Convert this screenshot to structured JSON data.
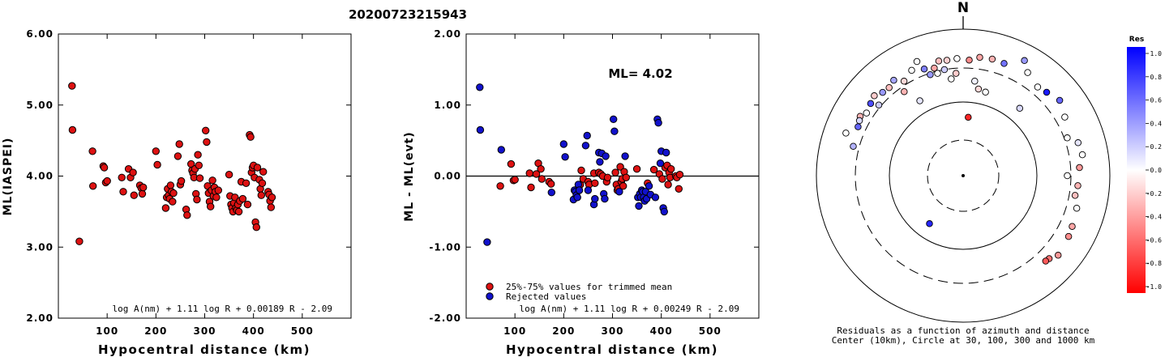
{
  "title": "20200723215943",
  "chart_data": [
    {
      "type": "scatter",
      "xlabel": "Hypocentral distance (km)",
      "ylabel": "ML(IASPEI)",
      "xlim": [
        0,
        600
      ],
      "ylim": [
        2.0,
        6.0
      ],
      "xticks": [
        "100",
        "200",
        "300",
        "400",
        "500"
      ],
      "yticks": [
        "2.00",
        "3.00",
        "4.00",
        "5.00",
        "6.00"
      ],
      "formula": "log A(nm) + 1.11 log R + 0.00189 R - 2.09",
      "points_color": "#dd1111",
      "points": [
        [
          28,
          5.27
        ],
        [
          29,
          4.65
        ],
        [
          43,
          3.08
        ],
        [
          70,
          4.35
        ],
        [
          71,
          3.86
        ],
        [
          92,
          4.14
        ],
        [
          94,
          4.12
        ],
        [
          97,
          3.91
        ],
        [
          100,
          3.93
        ],
        [
          130,
          3.98
        ],
        [
          133,
          3.78
        ],
        [
          144,
          4.1
        ],
        [
          148,
          3.98
        ],
        [
          153,
          4.05
        ],
        [
          155,
          3.73
        ],
        [
          167,
          3.87
        ],
        [
          170,
          3.83
        ],
        [
          172,
          3.75
        ],
        [
          174,
          3.84
        ],
        [
          200,
          4.35
        ],
        [
          203,
          4.16
        ],
        [
          220,
          3.55
        ],
        [
          222,
          3.7
        ],
        [
          224,
          3.82
        ],
        [
          226,
          3.73
        ],
        [
          228,
          3.68
        ],
        [
          230,
          3.87
        ],
        [
          232,
          3.78
        ],
        [
          234,
          3.64
        ],
        [
          236,
          3.76
        ],
        [
          245,
          4.28
        ],
        [
          248,
          4.45
        ],
        [
          250,
          3.88
        ],
        [
          252,
          3.93
        ],
        [
          262,
          3.53
        ],
        [
          264,
          3.45
        ],
        [
          272,
          4.17
        ],
        [
          274,
          4.08
        ],
        [
          276,
          4.04
        ],
        [
          278,
          3.98
        ],
        [
          280,
          4.1
        ],
        [
          282,
          3.75
        ],
        [
          284,
          3.67
        ],
        [
          286,
          4.3
        ],
        [
          288,
          4.15
        ],
        [
          290,
          3.97
        ],
        [
          302,
          4.64
        ],
        [
          304,
          4.48
        ],
        [
          306,
          3.86
        ],
        [
          308,
          3.76
        ],
        [
          310,
          3.64
        ],
        [
          312,
          3.57
        ],
        [
          314,
          3.8
        ],
        [
          316,
          3.94
        ],
        [
          318,
          3.72
        ],
        [
          320,
          3.84
        ],
        [
          322,
          3.78
        ],
        [
          324,
          3.7
        ],
        [
          328,
          3.8
        ],
        [
          350,
          4.02
        ],
        [
          352,
          3.72
        ],
        [
          354,
          3.6
        ],
        [
          356,
          3.55
        ],
        [
          358,
          3.5
        ],
        [
          360,
          3.62
        ],
        [
          362,
          3.7
        ],
        [
          364,
          3.55
        ],
        [
          366,
          3.52
        ],
        [
          368,
          3.6
        ],
        [
          370,
          3.5
        ],
        [
          372,
          3.65
        ],
        [
          375,
          3.92
        ],
        [
          378,
          3.68
        ],
        [
          385,
          3.9
        ],
        [
          388,
          3.6
        ],
        [
          392,
          4.58
        ],
        [
          394,
          4.55
        ],
        [
          396,
          4.05
        ],
        [
          398,
          4.12
        ],
        [
          400,
          4.15
        ],
        [
          402,
          3.98
        ],
        [
          404,
          3.35
        ],
        [
          406,
          3.28
        ],
        [
          408,
          4.12
        ],
        [
          412,
          3.95
        ],
        [
          414,
          3.82
        ],
        [
          416,
          3.73
        ],
        [
          418,
          3.9
        ],
        [
          420,
          4.06
        ],
        [
          430,
          3.78
        ],
        [
          432,
          3.74
        ],
        [
          434,
          3.65
        ],
        [
          436,
          3.56
        ],
        [
          438,
          3.7
        ]
      ]
    },
    {
      "type": "scatter",
      "xlabel": "Hypocentral distance (km)",
      "ylabel": "ML - ML(evt)",
      "xlim": [
        0,
        600
      ],
      "ylim": [
        -2.0,
        2.0
      ],
      "xticks": [
        "100",
        "200",
        "300",
        "400",
        "500"
      ],
      "yticks": [
        "-2.00",
        "-1.00",
        "0.00",
        "1.00",
        "2.00"
      ],
      "annotation": "ML= 4.02",
      "formula": "log A(nm) + 1.11 log R + 0.00249 R - 2.09",
      "zero_line": 0,
      "legend": [
        {
          "label": "25%-75% values for trimmed mean",
          "color": "#dd1111"
        },
        {
          "label": "Rejected values",
          "color": "#1111cc"
        }
      ],
      "series": [
        {
          "name": "25%-75% values for trimmed mean",
          "color": "#dd1111",
          "points": [
            [
              70,
              -0.14
            ],
            [
              92,
              0.17
            ],
            [
              97,
              -0.06
            ],
            [
              100,
              -0.05
            ],
            [
              130,
              0.04
            ],
            [
              133,
              -0.16
            ],
            [
              144,
              0.03
            ],
            [
              148,
              0.18
            ],
            [
              153,
              0.1
            ],
            [
              155,
              -0.04
            ],
            [
              170,
              -0.08
            ],
            [
              174,
              -0.11
            ],
            [
              234,
              -0.12
            ],
            [
              236,
              0.08
            ],
            [
              240,
              -0.04
            ],
            [
              250,
              -0.08
            ],
            [
              252,
              -0.12
            ],
            [
              262,
              0.04
            ],
            [
              264,
              -0.1
            ],
            [
              272,
              0.05
            ],
            [
              276,
              0.03
            ],
            [
              280,
              0.0
            ],
            [
              288,
              -0.08
            ],
            [
              290,
              -0.02
            ],
            [
              306,
              0.05
            ],
            [
              308,
              -0.12
            ],
            [
              310,
              -0.2
            ],
            [
              312,
              -0.18
            ],
            [
              316,
              0.13
            ],
            [
              318,
              -0.08
            ],
            [
              320,
              -0.04
            ],
            [
              322,
              -0.14
            ],
            [
              324,
              0.06
            ],
            [
              328,
              -0.02
            ],
            [
              350,
              0.1
            ],
            [
              372,
              -0.1
            ],
            [
              385,
              0.09
            ],
            [
              396,
              0.03
            ],
            [
              402,
              -0.04
            ],
            [
              408,
              0.12
            ],
            [
              412,
              0.15
            ],
            [
              414,
              -0.12
            ],
            [
              416,
              0.05
            ],
            [
              418,
              -0.02
            ],
            [
              420,
              0.1
            ],
            [
              430,
              0.0
            ],
            [
              432,
              -0.02
            ],
            [
              436,
              -0.18
            ],
            [
              438,
              0.02
            ]
          ]
        },
        {
          "name": "Rejected values",
          "color": "#1111cc",
          "points": [
            [
              28,
              1.25
            ],
            [
              29,
              0.65
            ],
            [
              43,
              -0.93
            ],
            [
              72,
              0.37
            ],
            [
              175,
              -0.23
            ],
            [
              200,
              0.45
            ],
            [
              203,
              0.27
            ],
            [
              220,
              -0.33
            ],
            [
              222,
              -0.2
            ],
            [
              224,
              -0.22
            ],
            [
              226,
              -0.27
            ],
            [
              228,
              -0.3
            ],
            [
              230,
              -0.12
            ],
            [
              232,
              -0.2
            ],
            [
              245,
              0.43
            ],
            [
              248,
              0.57
            ],
            [
              250,
              -0.2
            ],
            [
              262,
              -0.4
            ],
            [
              264,
              -0.32
            ],
            [
              272,
              0.33
            ],
            [
              274,
              0.2
            ],
            [
              278,
              0.32
            ],
            [
              282,
              -0.25
            ],
            [
              284,
              -0.32
            ],
            [
              286,
              0.28
            ],
            [
              302,
              0.8
            ],
            [
              304,
              0.63
            ],
            [
              314,
              -0.22
            ],
            [
              326,
              0.28
            ],
            [
              352,
              -0.3
            ],
            [
              354,
              -0.42
            ],
            [
              356,
              -0.25
            ],
            [
              358,
              -0.3
            ],
            [
              360,
              -0.2
            ],
            [
              362,
              -0.22
            ],
            [
              364,
              -0.3
            ],
            [
              366,
              -0.35
            ],
            [
              368,
              -0.22
            ],
            [
              370,
              -0.32
            ],
            [
              375,
              -0.14
            ],
            [
              378,
              -0.26
            ],
            [
              388,
              -0.3
            ],
            [
              392,
              0.8
            ],
            [
              394,
              0.75
            ],
            [
              398,
              0.18
            ],
            [
              400,
              0.35
            ],
            [
              404,
              -0.45
            ],
            [
              406,
              -0.5
            ],
            [
              410,
              0.33
            ]
          ]
        }
      ]
    },
    {
      "type": "polar",
      "north_label": "N",
      "caption_line1": "Residuals as a function of azimuth and distance",
      "caption_line2": "Center (10km), Circle at 30, 100, 300 and 1000 km",
      "colorbar": {
        "title": "Res",
        "ticks": [
          "1.0",
          "0.8",
          "0.6",
          "0.4",
          "0.2",
          "0.0",
          "-0.2",
          "-0.4",
          "-0.6",
          "-0.8",
          "-1.0"
        ],
        "max_color": "#0000ff",
        "zero_color": "#ffffff",
        "min_color": "#ff0000"
      },
      "points": [
        {
          "az": 342,
          "dist": 1.45,
          "res": 0.4
        },
        {
          "az": 348,
          "dist": 1.6,
          "res": -0.25
        },
        {
          "az": 352,
          "dist": 1.59,
          "res": -0.18
        },
        {
          "az": 357,
          "dist": 1.6,
          "res": 0.0
        },
        {
          "az": 3,
          "dist": 1.58,
          "res": -0.45
        },
        {
          "az": 8,
          "dist": 1.63,
          "res": -0.35
        },
        {
          "az": 14,
          "dist": 1.64,
          "res": -0.3
        },
        {
          "az": 20,
          "dist": 1.63,
          "res": 0.55
        },
        {
          "az": 7,
          "dist": 1.3,
          "res": 0.05
        },
        {
          "az": 28,
          "dist": 1.78,
          "res": 0.4
        },
        {
          "az": 32,
          "dist": 1.66,
          "res": 0.0
        },
        {
          "az": 40,
          "dist": 1.58,
          "res": 0.0
        },
        {
          "az": 45,
          "dist": 1.61,
          "res": 0.9
        },
        {
          "az": 52,
          "dist": 1.67,
          "res": 0.6
        },
        {
          "az": 60,
          "dist": 1.6,
          "res": 0.0
        },
        {
          "az": 70,
          "dist": 1.51,
          "res": 0.0
        },
        {
          "az": 74,
          "dist": 1.63,
          "res": 0.1
        },
        {
          "az": 80,
          "dist": 1.65,
          "res": 0.0
        },
        {
          "az": 86,
          "dist": 1.59,
          "res": -0.4
        },
        {
          "az": 90,
          "dist": 1.42,
          "res": 0.0
        },
        {
          "az": 95,
          "dist": 1.57,
          "res": -0.3
        },
        {
          "az": 100,
          "dist": 1.55,
          "res": -0.25
        },
        {
          "az": 106,
          "dist": 1.61,
          "res": 0.0
        },
        {
          "az": 115,
          "dist": 1.64,
          "res": -0.35
        },
        {
          "az": 120,
          "dist": 1.66,
          "res": -0.45
        },
        {
          "az": 130,
          "dist": 1.69,
          "res": -0.4
        },
        {
          "az": 134,
          "dist": 1.63,
          "res": -0.55
        },
        {
          "az": 136,
          "dist": 1.62,
          "res": -0.65
        },
        {
          "az": 40,
          "dist": 1.2,
          "res": 0.15
        },
        {
          "az": 215,
          "dist": 0.8,
          "res": 0.85
        },
        {
          "az": 5,
          "dist": 0.8,
          "res": -0.85
        },
        {
          "az": 330,
          "dist": 1.18,
          "res": 0.1
        },
        {
          "az": 290,
          "dist": 1.7,
          "res": 0.0
        },
        {
          "az": 295,
          "dist": 1.58,
          "res": 0.6
        },
        {
          "az": 300,
          "dist": 1.62,
          "res": -0.3
        },
        {
          "az": 303,
          "dist": 1.57,
          "res": 0.0
        },
        {
          "az": 308,
          "dist": 1.6,
          "res": 0.7
        },
        {
          "az": 312,
          "dist": 1.63,
          "res": -0.2
        },
        {
          "az": 316,
          "dist": 1.58,
          "res": 0.4
        },
        {
          "az": 320,
          "dist": 1.57,
          "res": -0.25
        },
        {
          "az": 324,
          "dist": 1.61,
          "res": 0.35
        },
        {
          "az": 328,
          "dist": 1.52,
          "res": -0.15
        },
        {
          "az": 334,
          "dist": 1.6,
          "res": 0.0
        },
        {
          "az": 338,
          "dist": 1.68,
          "res": 0.0
        },
        {
          "az": 346,
          "dist": 1.44,
          "res": 0.0
        },
        {
          "az": 353,
          "dist": 1.33,
          "res": 0.0
        },
        {
          "az": 10,
          "dist": 1.2,
          "res": -0.15
        },
        {
          "az": 15,
          "dist": 1.18,
          "res": 0.0
        },
        {
          "az": 285,
          "dist": 1.55,
          "res": 0.3
        },
        {
          "az": 310,
          "dist": 1.5,
          "res": 0.2
        },
        {
          "az": 298,
          "dist": 1.6,
          "res": 0.15
        },
        {
          "az": 345,
          "dist": 1.52,
          "res": -0.35
        },
        {
          "az": 350,
          "dist": 1.47,
          "res": 0.2
        },
        {
          "az": 356,
          "dist": 1.4,
          "res": -0.2
        },
        {
          "az": 340,
          "dist": 1.55,
          "res": 0.5
        },
        {
          "az": 325,
          "dist": 1.4,
          "res": -0.3
        }
      ]
    }
  ]
}
